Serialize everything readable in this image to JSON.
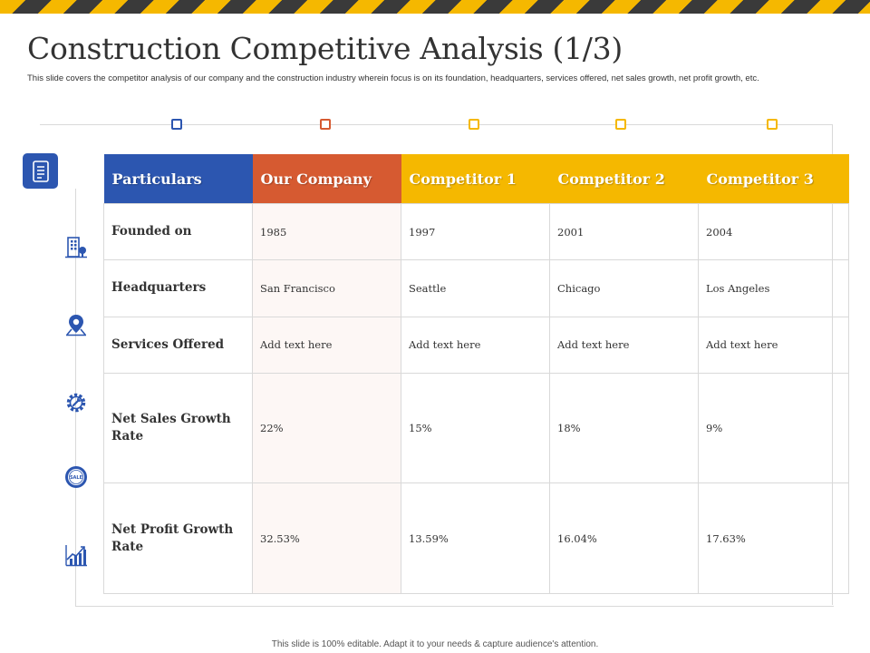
{
  "title": "Construction Competitive Analysis (1/3)",
  "subtitle": "This slide covers the competitor analysis of our company and the construction industry wherein focus is on its foundation, headquarters, services offered, net sales growth, net profit growth, etc.",
  "colors": {
    "blue": "#2c56b0",
    "orange": "#d65a31",
    "yellow": "#f5b800",
    "dark": "#3a3a3a"
  },
  "table": {
    "headers": [
      "Particulars",
      "Our Company",
      "Competitor 1",
      "Competitor 2",
      "Competitor 3"
    ],
    "rows": [
      {
        "icon": "building-icon",
        "label": "Founded on",
        "values": [
          "1985",
          "1997",
          "2001",
          "2004"
        ]
      },
      {
        "icon": "location-pin-icon",
        "label": "Headquarters",
        "values": [
          "San Francisco",
          "Seattle",
          "Chicago",
          "Los Angeles"
        ]
      },
      {
        "icon": "gear-wrench-icon",
        "label": "Services Offered",
        "values": [
          "Add text here",
          "Add text here",
          "Add text here",
          "Add text here"
        ]
      },
      {
        "icon": "sale-badge-icon",
        "label": "Net Sales Growth Rate",
        "values": [
          "22%",
          "15%",
          "18%",
          "9%"
        ]
      },
      {
        "icon": "growth-chart-icon",
        "label": "Net Profit Growth Rate",
        "values": [
          "32.53%",
          "13.59%",
          "16.04%",
          "17.63%"
        ]
      }
    ]
  },
  "footer": "This slide is 100% editable. Adapt it to your needs & capture audience's attention."
}
